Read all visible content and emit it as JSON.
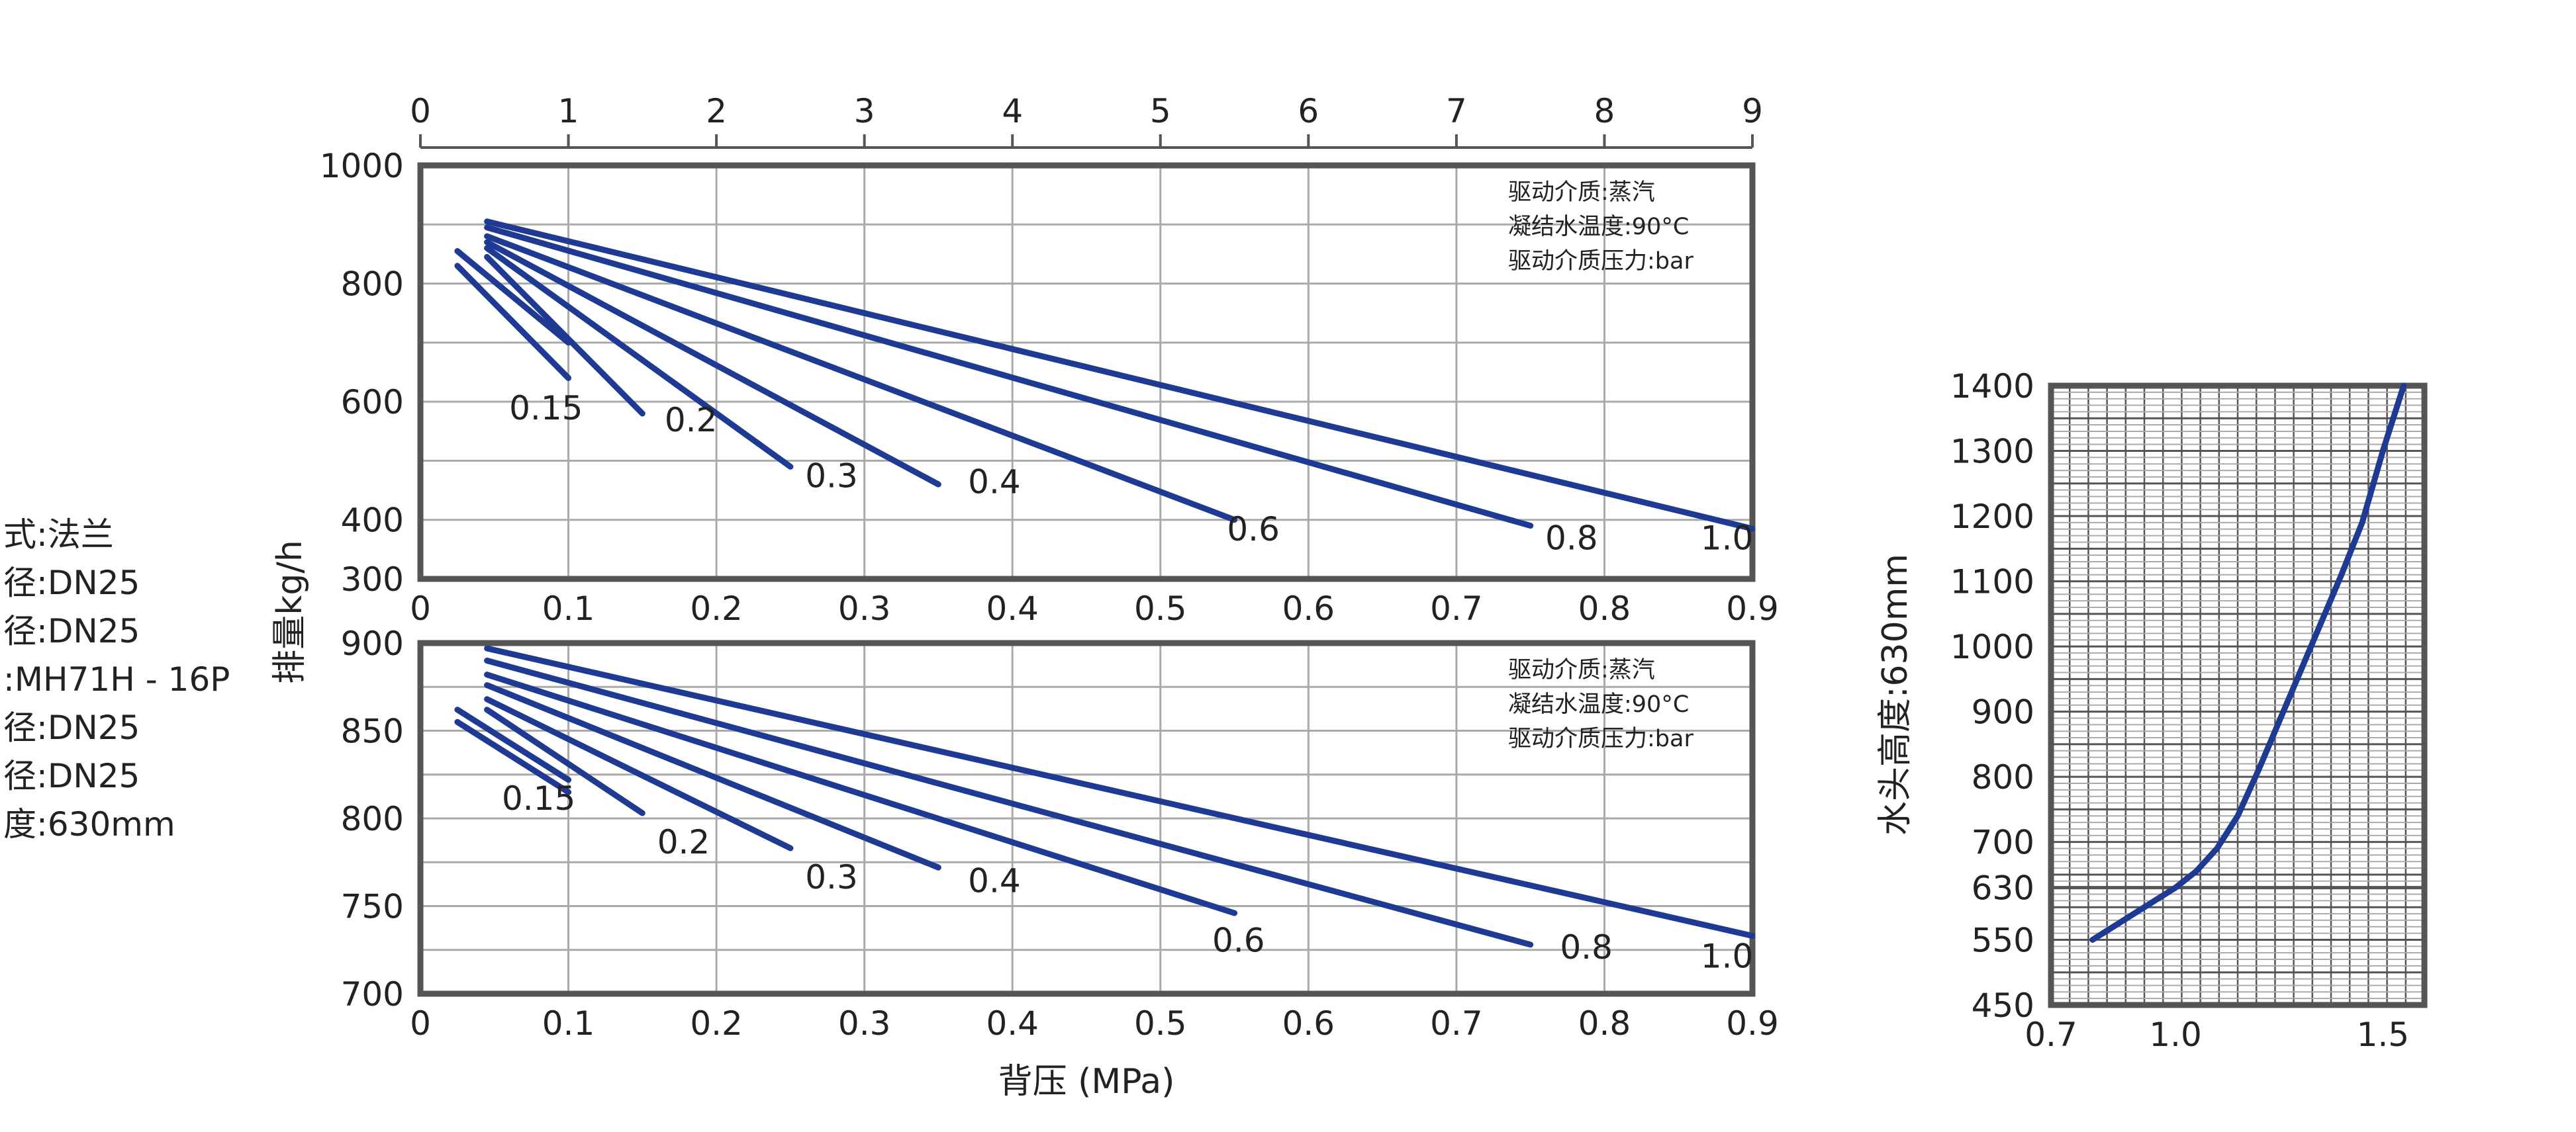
{
  "colors": {
    "curve": "#1f3a93",
    "frame": "#555555",
    "grid": "#aaaaaa",
    "text": "#222222"
  },
  "specs": [
    "式:法兰",
    "径:DN25",
    "径:DN25",
    ":MH71H - 16P",
    "径:DN25",
    "径:DN25",
    "度:630mm"
  ],
  "chart_data": [
    {
      "type": "line",
      "top_axis_ticks": [
        "0",
        "1",
        "2",
        "3",
        "4",
        "5",
        "6",
        "7",
        "8",
        "9"
      ],
      "xlim": [
        0,
        0.9
      ],
      "ylim": [
        300,
        1000
      ],
      "yticks": [
        300,
        400,
        600,
        800,
        1000
      ],
      "xticks": [
        0,
        0.1,
        0.2,
        0.3,
        0.4,
        0.5,
        0.6,
        0.7,
        0.8,
        0.9
      ],
      "ylabel": "排量kg/h",
      "legend": [
        "驱动介质:蒸汽",
        "凝结水温度:90°C",
        "驱动介质压力:bar"
      ],
      "series": [
        {
          "name": "0.15",
          "points": [
            [
              0.025,
              830
            ],
            [
              0.1,
              640
            ]
          ]
        },
        {
          "name": "0.15",
          "points": [
            [
              0.025,
              855
            ],
            [
              0.1,
              700
            ]
          ]
        },
        {
          "name": "0.2",
          "points": [
            [
              0.045,
              845
            ],
            [
              0.15,
              580
            ]
          ]
        },
        {
          "name": "0.3",
          "points": [
            [
              0.045,
              860
            ],
            [
              0.25,
              490
            ]
          ]
        },
        {
          "name": "0.4",
          "points": [
            [
              0.045,
              870
            ],
            [
              0.35,
              460
            ]
          ]
        },
        {
          "name": "0.6",
          "points": [
            [
              0.045,
              880
            ],
            [
              0.55,
              400
            ]
          ]
        },
        {
          "name": "0.8",
          "points": [
            [
              0.045,
              895
            ],
            [
              0.75,
              390
            ]
          ]
        },
        {
          "name": "1.0",
          "points": [
            [
              0.045,
              905
            ],
            [
              0.9,
              385
            ]
          ]
        }
      ],
      "curve_labels": [
        {
          "text": "0.15",
          "x": 0.06,
          "y": 570
        },
        {
          "text": "0.2",
          "x": 0.165,
          "y": 550
        },
        {
          "text": "0.3",
          "x": 0.26,
          "y": 455
        },
        {
          "text": "0.4",
          "x": 0.37,
          "y": 445
        },
        {
          "text": "0.6",
          "x": 0.545,
          "y": 365
        },
        {
          "text": "0.8",
          "x": 0.76,
          "y": 350
        },
        {
          "text": "1.0",
          "x": 0.865,
          "y": 350
        }
      ]
    },
    {
      "type": "line",
      "xlim": [
        0,
        0.9
      ],
      "ylim": [
        700,
        900
      ],
      "yticks": [
        700,
        750,
        800,
        850,
        900
      ],
      "xticks": [
        0,
        0.1,
        0.2,
        0.3,
        0.4,
        0.5,
        0.6,
        0.7,
        0.8,
        0.9
      ],
      "xlabel": "背压 (MPa)",
      "legend": [
        "驱动介质:蒸汽",
        "凝结水温度:90°C",
        "驱动介质压力:bar"
      ],
      "series": [
        {
          "name": "0.15",
          "points": [
            [
              0.025,
              855
            ],
            [
              0.1,
              815
            ]
          ]
        },
        {
          "name": "0.15",
          "points": [
            [
              0.025,
              862
            ],
            [
              0.1,
              822
            ]
          ]
        },
        {
          "name": "0.2",
          "points": [
            [
              0.045,
              862
            ],
            [
              0.15,
              803
            ]
          ]
        },
        {
          "name": "0.3",
          "points": [
            [
              0.045,
              868
            ],
            [
              0.25,
              783
            ]
          ]
        },
        {
          "name": "0.4",
          "points": [
            [
              0.045,
              876
            ],
            [
              0.35,
              772
            ]
          ]
        },
        {
          "name": "0.6",
          "points": [
            [
              0.045,
              882
            ],
            [
              0.55,
              746
            ]
          ]
        },
        {
          "name": "0.8",
          "points": [
            [
              0.045,
              890
            ],
            [
              0.75,
              728
            ]
          ]
        },
        {
          "name": "1.0",
          "points": [
            [
              0.045,
              897
            ],
            [
              0.9,
              733
            ]
          ]
        }
      ],
      "curve_labels": [
        {
          "text": "0.15",
          "x": 0.055,
          "y": 805
        },
        {
          "text": "0.2",
          "x": 0.16,
          "y": 780
        },
        {
          "text": "0.3",
          "x": 0.26,
          "y": 760
        },
        {
          "text": "0.4",
          "x": 0.37,
          "y": 758
        },
        {
          "text": "0.6",
          "x": 0.535,
          "y": 724
        },
        {
          "text": "0.8",
          "x": 0.77,
          "y": 720
        },
        {
          "text": "1.0",
          "x": 0.865,
          "y": 715
        }
      ]
    },
    {
      "type": "line",
      "xlim": [
        0.7,
        1.6
      ],
      "ylim": [
        450,
        1400
      ],
      "yticks": [
        450,
        550,
        630,
        700,
        800,
        900,
        1000,
        1100,
        1200,
        1300,
        1400
      ],
      "xticks": [
        0.7,
        1.0,
        1.5
      ],
      "ylabel": "水头高度:630mm",
      "series": [
        {
          "points": [
            [
              0.8,
              550
            ],
            [
              0.9,
              590
            ],
            [
              1.0,
              630
            ],
            [
              1.05,
              655
            ],
            [
              1.1,
              690
            ],
            [
              1.15,
              740
            ],
            [
              1.2,
              810
            ],
            [
              1.3,
              960
            ],
            [
              1.4,
              1110
            ],
            [
              1.45,
              1190
            ],
            [
              1.5,
              1300
            ],
            [
              1.55,
              1400
            ]
          ]
        }
      ]
    }
  ]
}
